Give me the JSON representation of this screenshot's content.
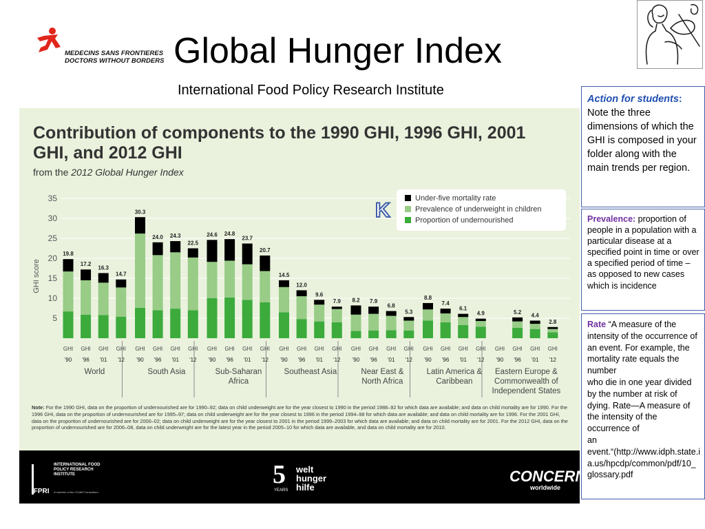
{
  "header": {
    "logo_line1": "MEDECINS SANS FRONTIERES",
    "logo_line2": "DOCTORS WITHOUT BORDERS",
    "title": "Global Hunger Index",
    "subtitle": "International Food Policy Research Institute"
  },
  "poster": {
    "title": "Contribution of components to the 1990 GHI, 1996 GHI, 2001 GHI, and 2012 GHI",
    "from_prefix": "from the ",
    "from_source": "2012 Global Hunger Index",
    "note_label": "Note:",
    "note_text": "For the 1990 GHI, data on the proportion of undernourished are for 1990–92; data on child underweight are for the year closest to 1990 in the period 1988–92 for which data are available; and data on child mortality are for 1990. For the 1996 GHI, data on the proportion of undernourished are for 1995–97; data on child underweight are for the year closest to 1996 in the period 1994–98 for which data are available; and data on child mortality are for 1996. For the 2001 GHI, data on the proportion of undernourished are for 2000–02; data on child underweight are for the year closest to 2001 in the period 1999–2003 for which data are available; and data on child mortality are for 2001. For the 2012 GHI, data on the proportion of undernourished are for 2006–08, data on child underweight are for the latest year in the period 2005–10 for which data are available, and data on child mortality are for 2010.",
    "annotation_letter": "K",
    "footer": {
      "ifpri_name": "INTERNATIONAL FOOD POLICY RESEARCH INSTITUTE",
      "ifpri_abbr": "IFPRI",
      "ifpri_member": "A member of the CGIAR Consortium",
      "welt_number": "5",
      "welt_years": "YEARS",
      "welt_name": "welt hunger hilfe",
      "concern_name": "CONCERN",
      "concern_sub": "worldwide"
    }
  },
  "side": {
    "box1_label": "Action for students",
    "box1_colon": ":",
    "box1_text": " Note the three dimensions of which the GHI is composed in your folder along with the main trends per region.",
    "box2_label": "Prevalence:",
    "box2_text": " proportion of people in a population with a particular disease at a specified point in time or over a specified period of time – as opposed to new cases which is incidence",
    "box3_label": "Rate",
    "box3_text1": " “A measure of the intensity of the occurrence of an event. For example, the mortality rate equals the number",
    "box3_text2": "who die in one year divided by the number at risk of dying. Rate—A measure of the intensity of the occurrence of",
    "box3_text3": "an",
    "box3_text4": "event.“(http://www.idph.state.ia.us/hpcdp/common/pdf/10_glossary.pdf"
  },
  "colors": {
    "mortality": "#000000",
    "underweight": "#98cc87",
    "undernourished": "#3cab3c",
    "poster_bg": "#eaf2dd"
  },
  "chart_data": {
    "type": "bar",
    "stacked": true,
    "ylabel": "GHI score",
    "ylim": [
      0,
      35
    ],
    "yticks": [
      5,
      10,
      15,
      20,
      25,
      30,
      35
    ],
    "grid": true,
    "legend_position": "top-right",
    "series_names": [
      "Under-five mortality rate",
      "Prevalence of underweight in children",
      "Proportion of undernourished"
    ],
    "groups": [
      {
        "name": "World",
        "label_lines": [
          "World"
        ],
        "bars": [
          {
            "x": [
              "GHI",
              "'90"
            ],
            "total": 19.8,
            "undernourished": 6.7,
            "underweight": 10.0,
            "mortality": 3.1,
            "total_label": "19.8"
          },
          {
            "x": [
              "GHI",
              "'96"
            ],
            "total": 17.2,
            "undernourished": 5.9,
            "underweight": 8.6,
            "mortality": 2.7,
            "total_label": "17.2"
          },
          {
            "x": [
              "GHI",
              "'01"
            ],
            "total": 16.3,
            "undernourished": 5.8,
            "underweight": 8.1,
            "mortality": 2.4,
            "total_label": "16.3"
          },
          {
            "x": [
              "GHI",
              "'12"
            ],
            "total": 14.7,
            "undernourished": 5.4,
            "underweight": 7.3,
            "mortality": 2.0,
            "total_label": "14.7"
          }
        ]
      },
      {
        "name": "South Asia",
        "label_lines": [
          "South Asia"
        ],
        "bars": [
          {
            "x": [
              "GHI",
              "'90"
            ],
            "total": 30.3,
            "undernourished": 7.6,
            "underweight": 18.6,
            "mortality": 4.1,
            "total_label": "30.3"
          },
          {
            "x": [
              "GHI",
              "'96"
            ],
            "total": 24.0,
            "undernourished": 7.0,
            "underweight": 13.8,
            "mortality": 3.2,
            "total_label": "24.0"
          },
          {
            "x": [
              "GHI",
              "'01"
            ],
            "total": 24.3,
            "undernourished": 7.4,
            "underweight": 14.1,
            "mortality": 2.8,
            "total_label": "24.3"
          },
          {
            "x": [
              "GHI",
              "'12"
            ],
            "total": 22.5,
            "undernourished": 7.0,
            "underweight": 13.2,
            "mortality": 2.3,
            "total_label": "22.5"
          }
        ]
      },
      {
        "name": "Sub-Saharan Africa",
        "label_lines": [
          "Sub-Saharan",
          "Africa"
        ],
        "bars": [
          {
            "x": [
              "GHI",
              "'90"
            ],
            "total": 24.6,
            "undernourished": 10.0,
            "underweight": 9.1,
            "mortality": 5.5,
            "total_label": "24.6"
          },
          {
            "x": [
              "GHI",
              "'96"
            ],
            "total": 24.8,
            "undernourished": 10.2,
            "underweight": 9.2,
            "mortality": 5.4,
            "total_label": "24.8"
          },
          {
            "x": [
              "GHI",
              "'01"
            ],
            "total": 23.7,
            "undernourished": 9.6,
            "underweight": 8.9,
            "mortality": 5.2,
            "total_label": "23.7"
          },
          {
            "x": [
              "GHI",
              "'12"
            ],
            "total": 20.7,
            "undernourished": 9.0,
            "underweight": 7.8,
            "mortality": 3.9,
            "total_label": "20.7"
          }
        ]
      },
      {
        "name": "Southeast Asia",
        "label_lines": [
          "Southeast Asia"
        ],
        "bars": [
          {
            "x": [
              "GHI",
              "'90"
            ],
            "total": 14.5,
            "undernourished": 6.5,
            "underweight": 6.3,
            "mortality": 1.7,
            "total_label": "14.5"
          },
          {
            "x": [
              "GHI",
              "'96"
            ],
            "total": 12.0,
            "undernourished": 4.8,
            "underweight": 5.7,
            "mortality": 1.5,
            "total_label": "12.0"
          },
          {
            "x": [
              "GHI",
              "'01"
            ],
            "total": 9.6,
            "undernourished": 4.2,
            "underweight": 4.2,
            "mortality": 1.2,
            "total_label": "9.6"
          },
          {
            "x": [
              "GHI",
              "'12"
            ],
            "total": 7.9,
            "undernourished": 4.0,
            "underweight": 3.3,
            "mortality": 0.6,
            "total_label": "7.9"
          }
        ]
      },
      {
        "name": "Near East & North Africa",
        "label_lines": [
          "Near East &",
          "North Africa"
        ],
        "bars": [
          {
            "x": [
              "GHI",
              "'90"
            ],
            "total": 8.2,
            "undernourished": 1.8,
            "underweight": 4.1,
            "mortality": 2.3,
            "total_label": "8.2"
          },
          {
            "x": [
              "GHI",
              "'96"
            ],
            "total": 7.9,
            "undernourished": 1.9,
            "underweight": 4.2,
            "mortality": 1.8,
            "total_label": "7.9"
          },
          {
            "x": [
              "GHI",
              "'01"
            ],
            "total": 6.8,
            "undernourished": 2.0,
            "underweight": 3.6,
            "mortality": 1.2,
            "total_label": "6.8"
          },
          {
            "x": [
              "GHI",
              "'12"
            ],
            "total": 5.3,
            "undernourished": 1.9,
            "underweight": 2.5,
            "mortality": 0.9,
            "total_label": "5.3"
          }
        ]
      },
      {
        "name": "Latin America & Caribbean",
        "label_lines": [
          "Latin America &",
          "Caribbean"
        ],
        "bars": [
          {
            "x": [
              "GHI",
              "'90"
            ],
            "total": 8.8,
            "undernourished": 4.4,
            "underweight": 2.8,
            "mortality": 1.6,
            "total_label": "8.8"
          },
          {
            "x": [
              "GHI",
              "'96"
            ],
            "total": 7.4,
            "undernourished": 4.0,
            "underweight": 2.2,
            "mortality": 1.2,
            "total_label": "7.4"
          },
          {
            "x": [
              "GHI",
              "'01"
            ],
            "total": 6.1,
            "undernourished": 3.3,
            "underweight": 2.0,
            "mortality": 0.8,
            "total_label": "6.1"
          },
          {
            "x": [
              "GHI",
              "'12"
            ],
            "total": 4.9,
            "undernourished": 2.9,
            "underweight": 1.4,
            "mortality": 0.6,
            "total_label": "4.9"
          }
        ]
      },
      {
        "name": "Eastern Europe & Commonwealth of Independent States",
        "label_lines": [
          "Eastern Europe &",
          "Commonwealth of",
          "Independent States"
        ],
        "bars": [
          {
            "x": [
              "GHI",
              "'90"
            ],
            "total": 0,
            "undernourished": 0,
            "underweight": 0,
            "mortality": 0,
            "total_label": ""
          },
          {
            "x": [
              "GHI",
              "'96"
            ],
            "total": 5.2,
            "undernourished": 2.6,
            "underweight": 1.6,
            "mortality": 1.0,
            "total_label": "5.2"
          },
          {
            "x": [
              "GHI",
              "'01"
            ],
            "total": 4.4,
            "undernourished": 2.3,
            "underweight": 1.3,
            "mortality": 0.8,
            "total_label": "4.4"
          },
          {
            "x": [
              "GHI",
              "'12"
            ],
            "total": 2.8,
            "undernourished": 1.5,
            "underweight": 0.8,
            "mortality": 0.5,
            "total_label": "2.8"
          }
        ]
      }
    ]
  }
}
